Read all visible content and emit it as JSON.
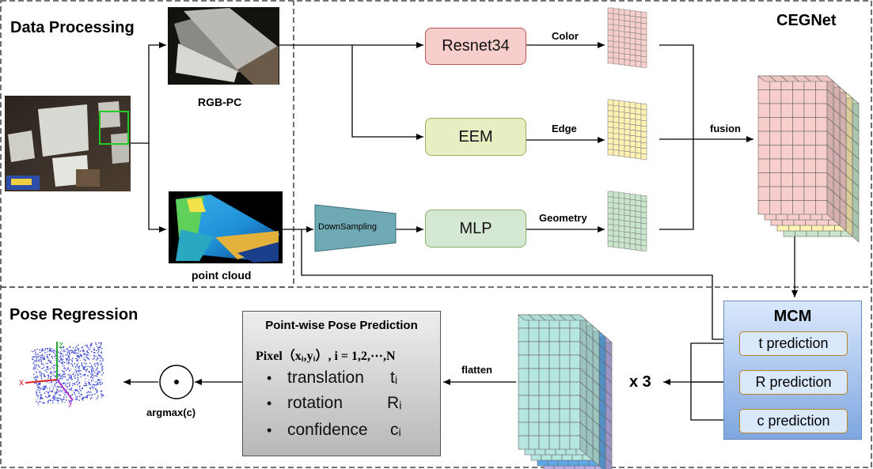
{
  "sections": {
    "data_processing": "Data Processing",
    "ceg_net": "CEGNet",
    "pose_regression": "Pose Regression"
  },
  "inputs": {
    "rgb_pc": "RGB-PC",
    "point_cloud": "point cloud"
  },
  "modules": {
    "resnet": "Resnet34",
    "eem": "EEM",
    "mlp": "MLP",
    "downsampling": "DownSampling"
  },
  "features": {
    "color": "Color",
    "edge": "Edge",
    "geometry": "Geometry",
    "fusion": "fusion"
  },
  "mcm": {
    "title": "MCM",
    "t": "t prediction",
    "R": "R prediction",
    "c": "c prediction"
  },
  "ops": {
    "times3": "x 3",
    "flatten": "flatten",
    "argmax": "argmax(c)"
  },
  "pose_prediction": {
    "title": "Point-wise Pose Prediction",
    "pixel_line": "Pixel（xᵢ,yᵢ）, i = 1,2,⋯,N",
    "items": [
      {
        "label": "translation",
        "symbol": "tᵢ"
      },
      {
        "label": "rotation",
        "symbol": "Rᵢ"
      },
      {
        "label": "confidence",
        "symbol": "cᵢ"
      }
    ]
  },
  "axes": {
    "x": "x",
    "y": "y",
    "z": "z"
  },
  "colors": {
    "resnet_fill": "#f8cecc",
    "resnet_stroke": "#b85450",
    "eem_fill": "#e6efc2",
    "eem_stroke": "#9aad5a",
    "mlp_fill": "#d5e8d4",
    "mlp_stroke": "#82b366",
    "downsampling_fill": "#6fa9b4",
    "grid_pink": "#f8cecc",
    "grid_yellow": "#fff2b3",
    "grid_green": "#c9e6cc",
    "grid_teal": "#b6e6e0",
    "grid_blue": "#5fa8e8",
    "grid_purple": "#b7aee6"
  }
}
